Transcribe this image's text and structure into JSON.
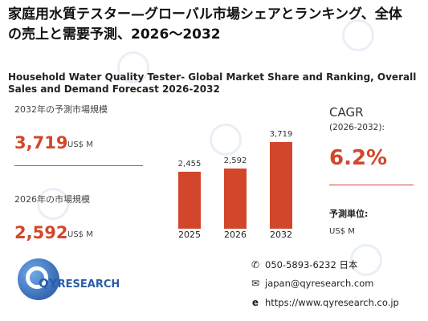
{
  "header": {
    "title": "家庭用水質テスター—グローバル市場シェアとランキング、全体の売上と需要予測、2026～2032",
    "subtitle": "Household Water Quality Tester- Global Market Share and Ranking, Overall Sales and Demand Forecast 2026-2032"
  },
  "forecast": {
    "label": "2032年の予測市場規模",
    "value": "3,719",
    "unit": "US$ M"
  },
  "current": {
    "label": "2026年の市場規模",
    "value": "2,592",
    "unit": "US$ M"
  },
  "chart_data": {
    "type": "bar",
    "categories": [
      "2025",
      "2026",
      "2032"
    ],
    "values": [
      2455,
      2592,
      3719
    ],
    "value_labels": [
      "2,455",
      "2,592",
      "3,719"
    ],
    "ylim": [
      0,
      3719
    ]
  },
  "cagr": {
    "label": "CAGR",
    "period": "(2026-2032):",
    "value": "6.2%"
  },
  "units": {
    "label": "予測単位:",
    "value": "US$ M"
  },
  "logo": {
    "name_q": "QY",
    "name_rest": "RESEARCH"
  },
  "contact": {
    "phone": "050-5893-6232 日本",
    "email": "japan@qyresearch.com",
    "website": "https://www.qyresearch.co.jp"
  },
  "icons": {
    "phone": "phone-icon",
    "email": "email-icon",
    "web": "web-icon"
  },
  "colors": {
    "accent": "#d2472b",
    "brand_blue": "#2a5ea8"
  }
}
